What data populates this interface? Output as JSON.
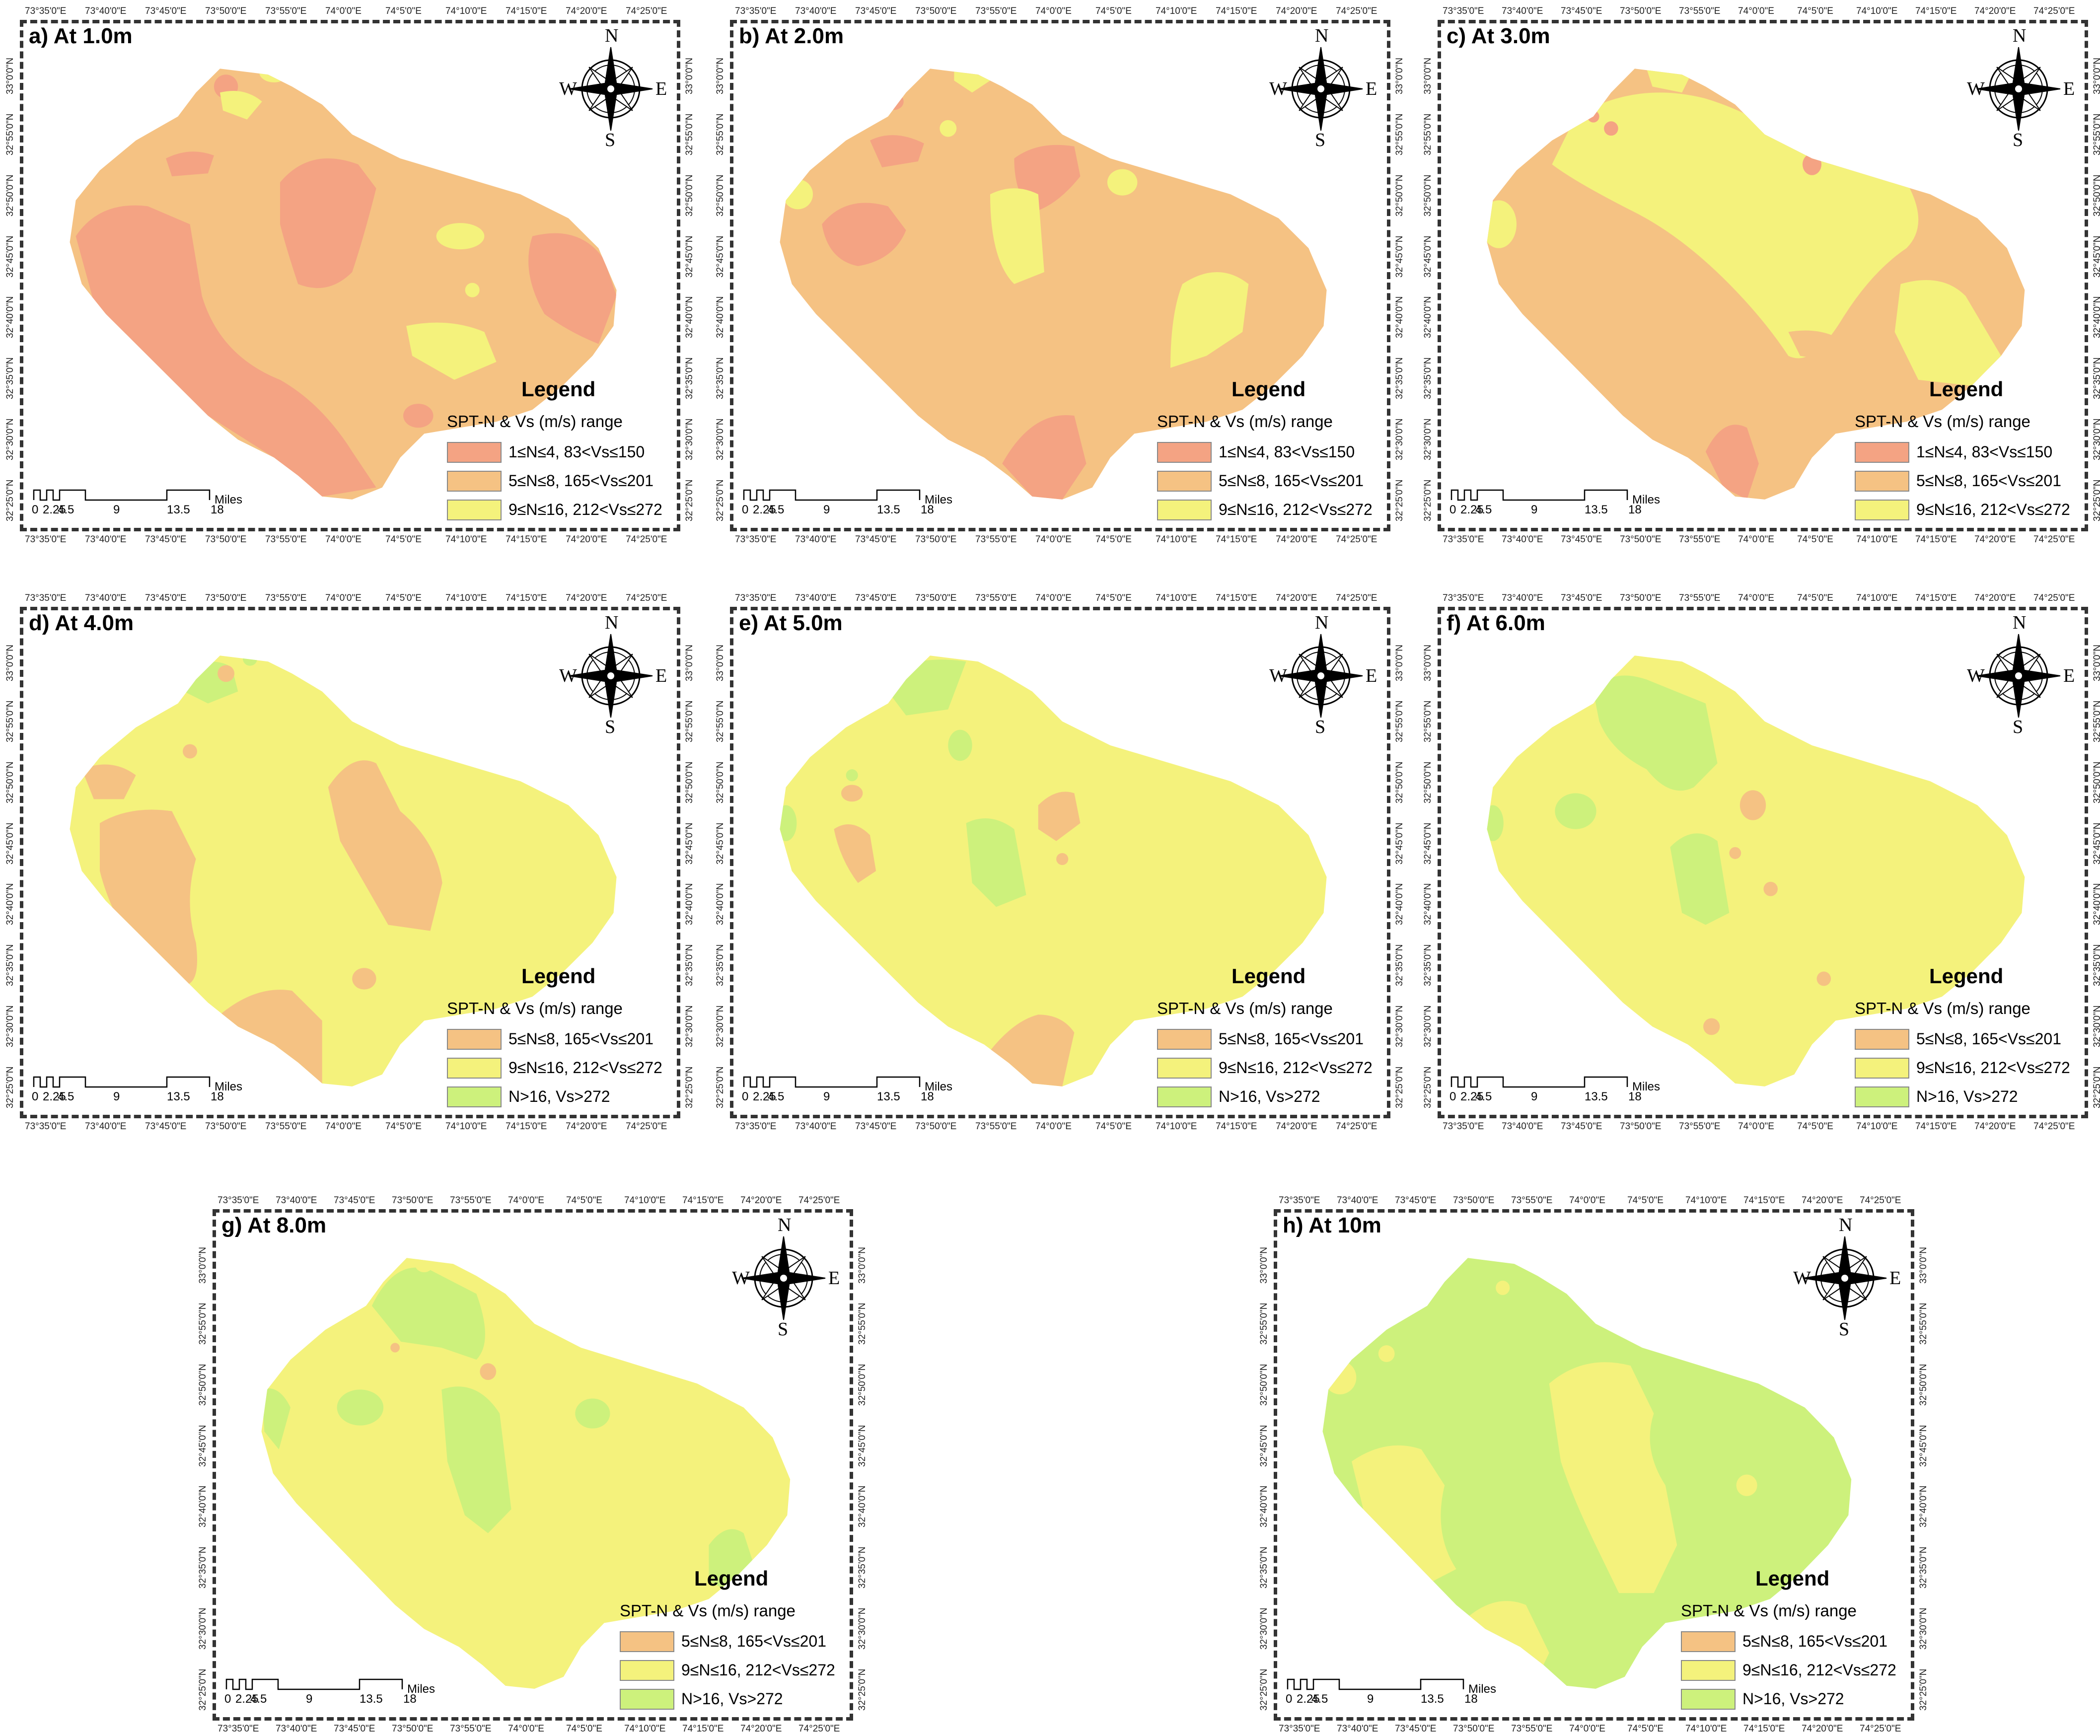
{
  "colors": {
    "c1": "#f4a383",
    "c2": "#f5c283",
    "c3": "#f4f27c",
    "c4": "#cdf17c"
  },
  "lon_ticks": [
    "73°35'0\"E",
    "73°40'0\"E",
    "73°45'0\"E",
    "73°50'0\"E",
    "73°55'0\"E",
    "74°0'0\"E",
    "74°5'0\"E",
    "74°10'0\"E",
    "74°15'0\"E",
    "74°20'0\"E",
    "74°25'0\"E"
  ],
  "lat_ticks": [
    "33°0'0\"N",
    "32°55'0\"N",
    "32°50'0\"N",
    "32°45'0\"N",
    "32°40'0\"N",
    "32°35'0\"N",
    "32°30'0\"N",
    "32°25'0\"N"
  ],
  "scale": {
    "labels": [
      "0",
      "2.25",
      "4.5",
      "9",
      "13.5",
      "18"
    ],
    "unit": "Miles"
  },
  "compass": {
    "n": "N",
    "s": "S",
    "e": "E",
    "w": "W"
  },
  "legend_title": "Legend",
  "legend_subtitle": "SPT-N & Vs (m/s) range",
  "classes": {
    "c1": "1≤N≤4, 83<Vs≤150",
    "c2": "5≤N≤8, 165<Vs≤201",
    "c3": "9≤N≤16, 212<Vs≤272",
    "c4": "N>16, Vs>272"
  },
  "panels": [
    {
      "id": "a",
      "title": "a) At 1.0m",
      "base": "c2",
      "legend": [
        "c1",
        "c2",
        "c3"
      ]
    },
    {
      "id": "b",
      "title": "b) At 2.0m",
      "base": "c2",
      "legend": [
        "c1",
        "c2",
        "c3"
      ]
    },
    {
      "id": "c",
      "title": "c) At 3.0m",
      "base": "c2",
      "legend": [
        "c1",
        "c2",
        "c3"
      ]
    },
    {
      "id": "d",
      "title": "d) At 4.0m",
      "base": "c3",
      "legend": [
        "c2",
        "c3",
        "c4"
      ]
    },
    {
      "id": "e",
      "title": "e) At 5.0m",
      "base": "c3",
      "legend": [
        "c2",
        "c3",
        "c4"
      ]
    },
    {
      "id": "f",
      "title": "f) At 6.0m",
      "base": "c3",
      "legend": [
        "c2",
        "c3",
        "c4"
      ]
    },
    {
      "id": "g",
      "title": "g) At 8.0m",
      "base": "c3",
      "legend": [
        "c2",
        "c3",
        "c4"
      ]
    },
    {
      "id": "h",
      "title": "h) At 10m",
      "base": "c4",
      "legend": [
        "c2",
        "c3",
        "c4"
      ]
    }
  ]
}
